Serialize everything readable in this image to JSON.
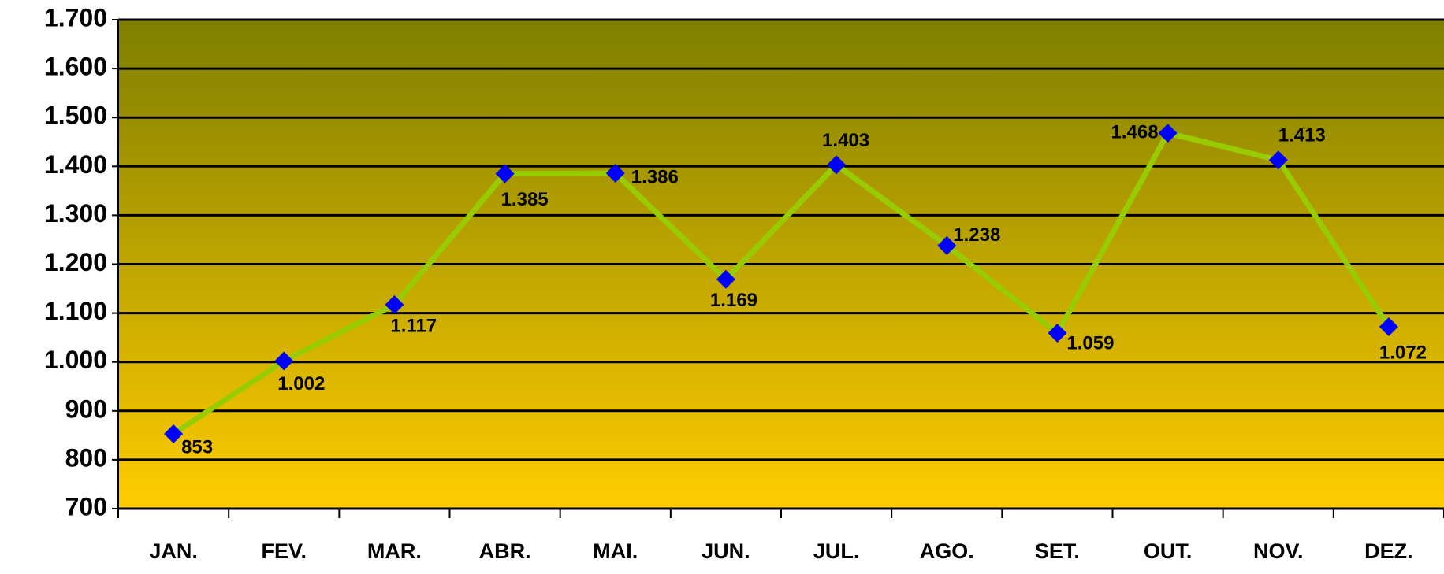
{
  "chart_data": {
    "type": "line",
    "categories": [
      "JAN.",
      "FEV.",
      "MAR.",
      "ABR.",
      "MAI.",
      "JUN.",
      "JUL.",
      "AGO.",
      "SET.",
      "OUT.",
      "NOV.",
      "DEZ."
    ],
    "series": [
      {
        "color": "#99cc00",
        "marker_color": "#0000ff",
        "values": [
          853,
          1002,
          1117,
          1385,
          1386,
          1169,
          1403,
          1238,
          1059,
          1468,
          1413,
          1072
        ],
        "value_labels": [
          "853",
          "1.002",
          "1.117",
          "1.385",
          "1.386",
          "1.169",
          "1.403",
          "1.238",
          "1.059",
          "1.468",
          "1.413",
          "1.072"
        ]
      }
    ],
    "ylim": [
      700,
      1700
    ],
    "yticks": [
      {
        "value": 700,
        "label": "700"
      },
      {
        "value": 800,
        "label": "800"
      },
      {
        "value": 900,
        "label": "900"
      },
      {
        "value": 1000,
        "label": "1.000"
      },
      {
        "value": 1100,
        "label": "1.100"
      },
      {
        "value": 1200,
        "label": "1.200"
      },
      {
        "value": 1300,
        "label": "1.300"
      },
      {
        "value": 1400,
        "label": "1.400"
      },
      {
        "value": 1500,
        "label": "1.500"
      },
      {
        "value": 1600,
        "label": "1.600"
      },
      {
        "value": 1700,
        "label": "1.700"
      }
    ],
    "grid": true
  }
}
